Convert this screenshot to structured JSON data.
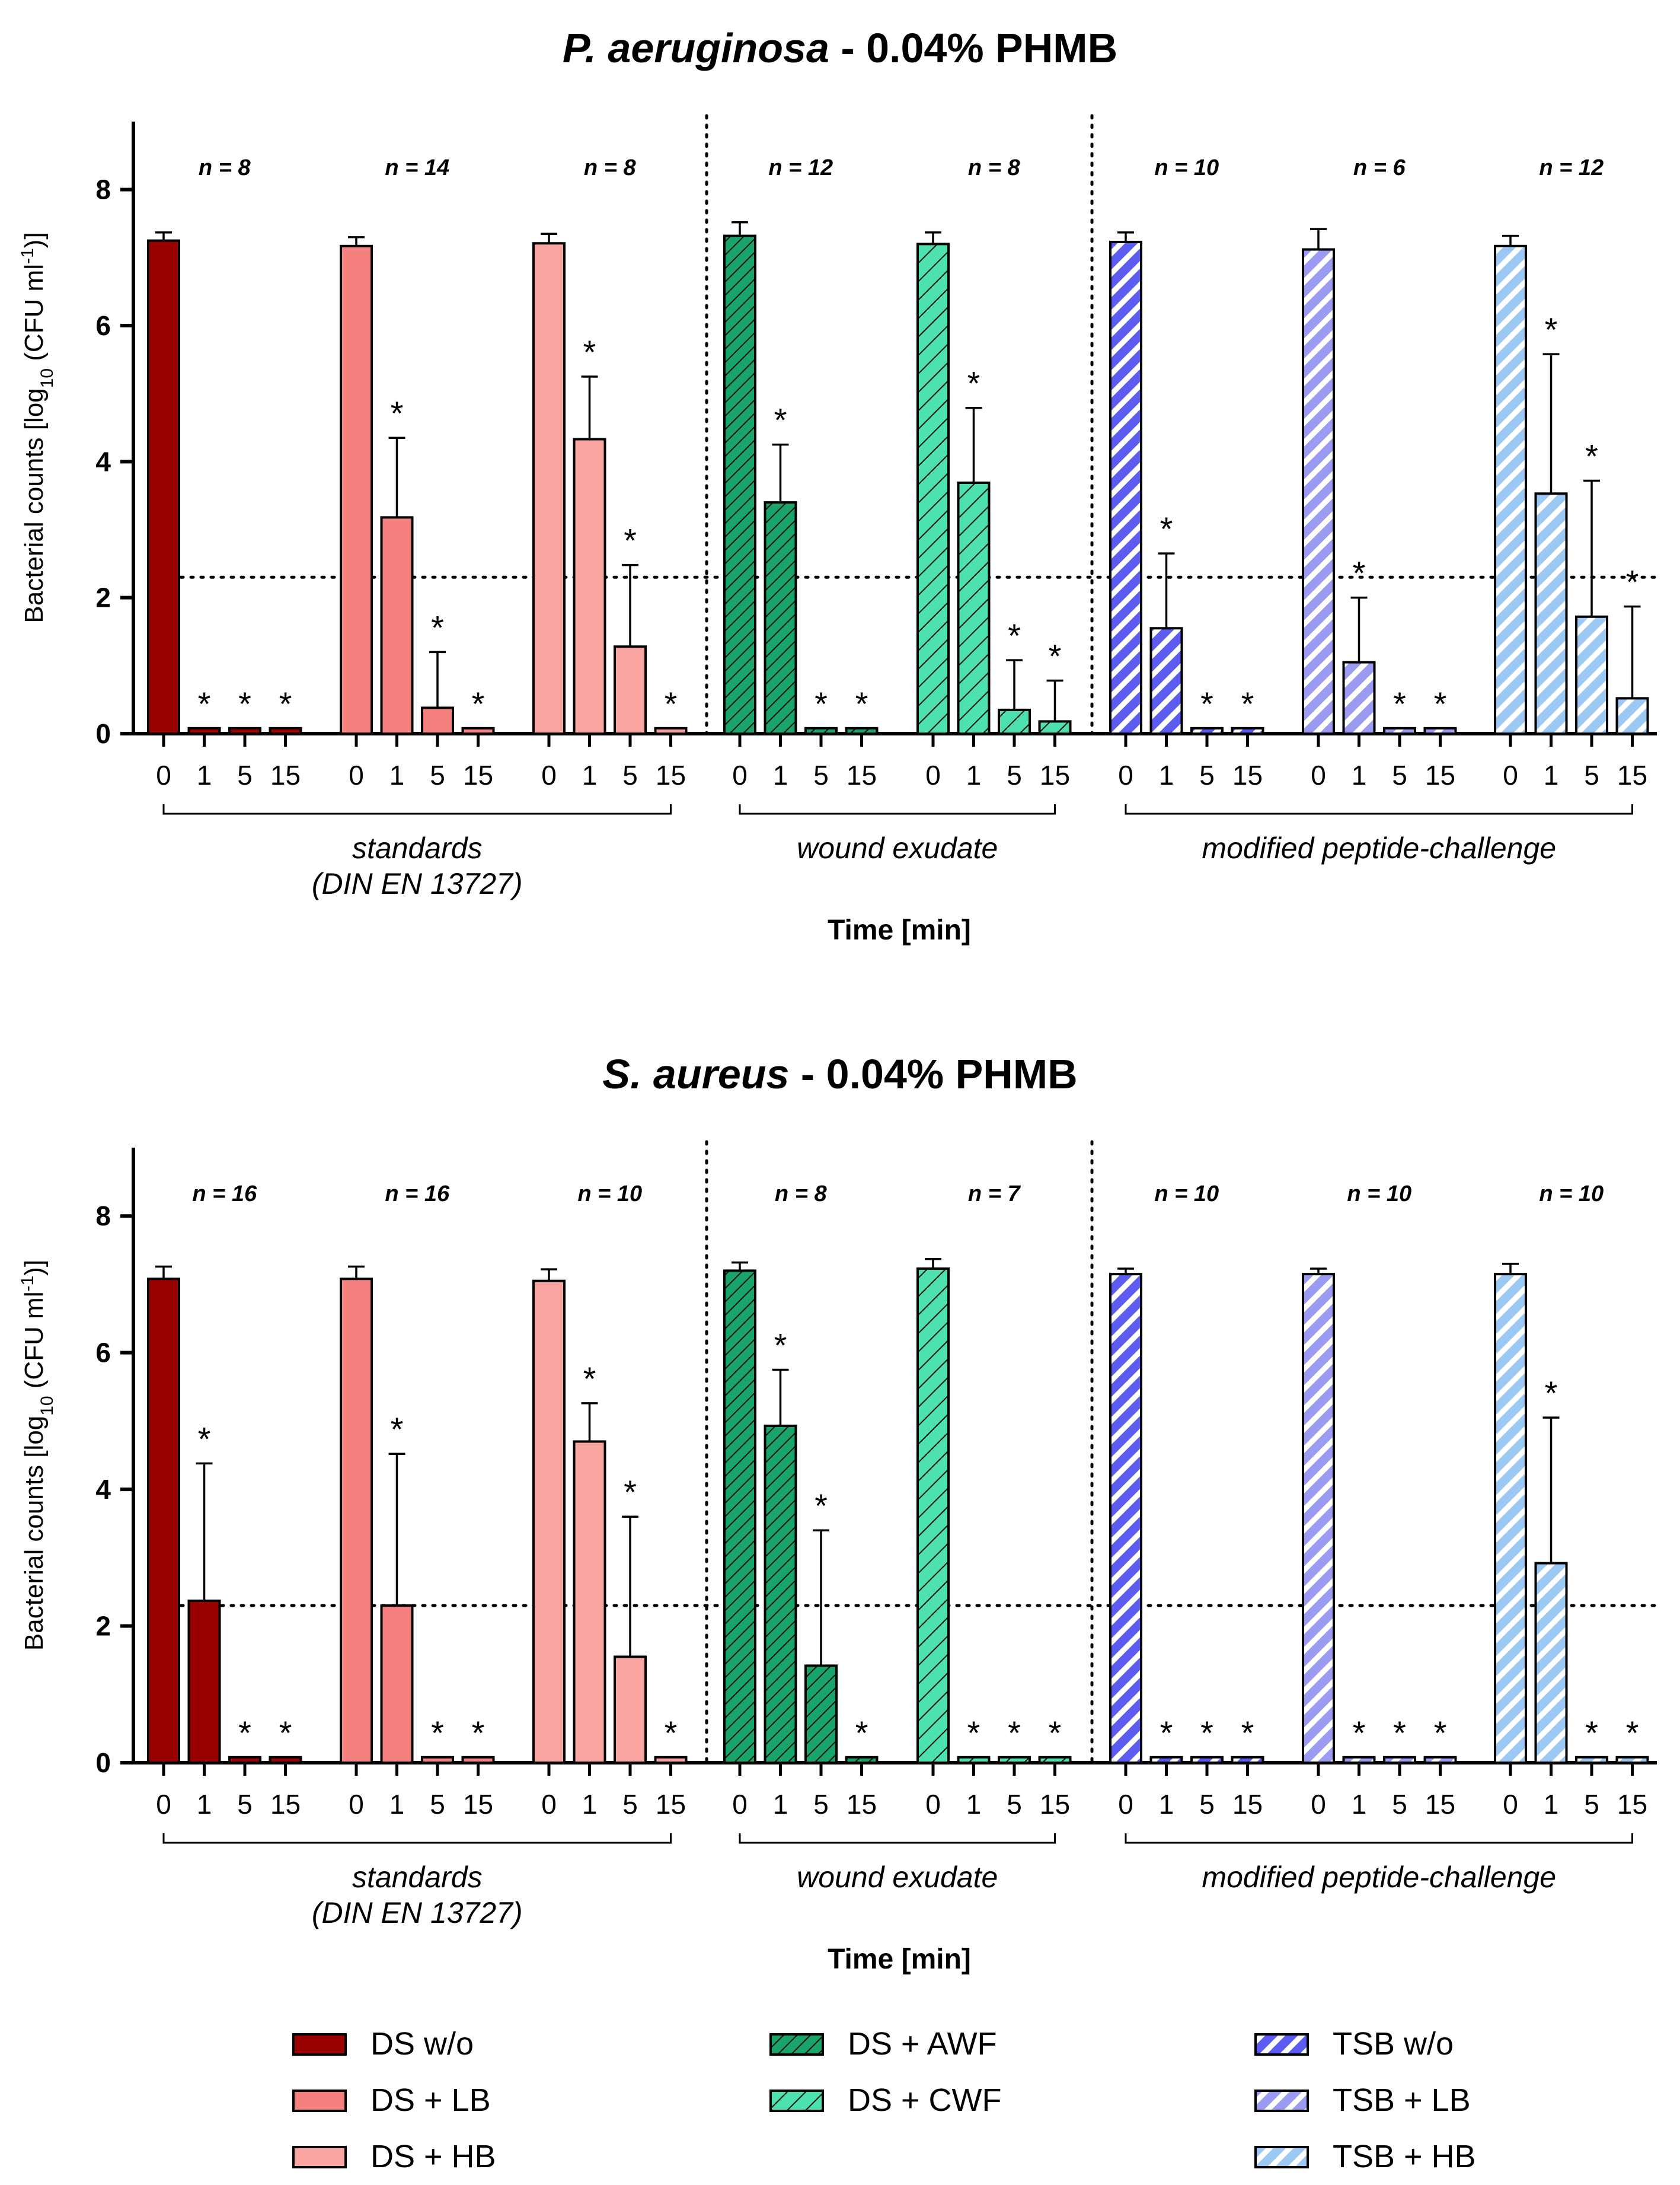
{
  "chart_data": [
    {
      "type": "bar",
      "title_italic": "P. aeruginosa",
      "title_rest": " - 0.04% PHMB",
      "ylabel": "Bacterial counts [log10 (CFU ml-1)]",
      "ylabel_parts": [
        "Bacterial counts [log",
        "10",
        " (CFU ml",
        "-1",
        ")]"
      ],
      "xlabel": "Time [min]",
      "ylim": [
        0,
        9
      ],
      "yticks": [
        0,
        2,
        4,
        6,
        8
      ],
      "detection_limit": 2.3,
      "time_labels": [
        "0",
        "1",
        "5",
        "15"
      ],
      "group_labels": [
        {
          "lines": [
            "standards",
            "(DIN EN 13727)"
          ]
        },
        {
          "lines": [
            "wound exudate"
          ]
        },
        {
          "lines": [
            "modified peptide-challenge"
          ]
        }
      ],
      "series": [
        {
          "name": "DS w/o",
          "n": "n = 8",
          "values": [
            7.25,
            0.08,
            0.08,
            0.08
          ],
          "errors": [
            0.12,
            0,
            0,
            0
          ],
          "sig": [
            false,
            true,
            true,
            true
          ]
        },
        {
          "name": "DS + LB",
          "n": "n = 14",
          "values": [
            7.17,
            3.18,
            0.38,
            0.08
          ],
          "errors": [
            0.13,
            1.17,
            0.82,
            0
          ],
          "sig": [
            false,
            true,
            true,
            true
          ]
        },
        {
          "name": "DS + HB",
          "n": "n = 8",
          "values": [
            7.21,
            4.33,
            1.28,
            0.08
          ],
          "errors": [
            0.14,
            0.92,
            1.2,
            0
          ],
          "sig": [
            false,
            true,
            true,
            true
          ]
        },
        {
          "name": "DS + AWF",
          "n": "n = 12",
          "values": [
            7.32,
            3.4,
            0.08,
            0.08
          ],
          "errors": [
            0.2,
            0.85,
            0,
            0
          ],
          "sig": [
            false,
            true,
            true,
            true
          ]
        },
        {
          "name": "DS + CWF",
          "n": "n = 8",
          "values": [
            7.2,
            3.69,
            0.35,
            0.18
          ],
          "errors": [
            0.17,
            1.1,
            0.73,
            0.6
          ],
          "sig": [
            false,
            true,
            true,
            true
          ]
        },
        {
          "name": "TSB w/o",
          "n": "n = 10",
          "values": [
            7.23,
            1.55,
            0.08,
            0.08
          ],
          "errors": [
            0.14,
            1.1,
            0,
            0
          ],
          "sig": [
            false,
            true,
            true,
            true
          ]
        },
        {
          "name": "TSB + LB",
          "n": "n = 6",
          "values": [
            7.12,
            1.05,
            0.08,
            0.08
          ],
          "errors": [
            0.3,
            0.95,
            0,
            0
          ],
          "sig": [
            false,
            true,
            true,
            true
          ]
        },
        {
          "name": "TSB + HB",
          "n": "n = 12",
          "values": [
            7.17,
            3.53,
            1.72,
            0.52
          ],
          "errors": [
            0.15,
            2.05,
            2.0,
            1.35
          ],
          "sig": [
            false,
            true,
            true,
            true
          ]
        }
      ]
    },
    {
      "type": "bar",
      "title_italic": "S. aureus",
      "title_rest": " - 0.04% PHMB",
      "ylabel": "Bacterial counts [log10 (CFU ml-1)]",
      "ylabel_parts": [
        "Bacterial counts [log",
        "10",
        " (CFU ml",
        "-1",
        ")]"
      ],
      "xlabel": "Time [min]",
      "ylim": [
        0,
        9
      ],
      "yticks": [
        0,
        2,
        4,
        6,
        8
      ],
      "detection_limit": 2.3,
      "time_labels": [
        "0",
        "1",
        "5",
        "15"
      ],
      "group_labels": [
        {
          "lines": [
            "standards",
            "(DIN EN 13727)"
          ]
        },
        {
          "lines": [
            "wound exudate"
          ]
        },
        {
          "lines": [
            "modified peptide-challenge"
          ]
        }
      ],
      "series": [
        {
          "name": "DS w/o",
          "n": "n = 16",
          "values": [
            7.08,
            2.37,
            0.08,
            0.08
          ],
          "errors": [
            0.18,
            2.01,
            0,
            0
          ],
          "sig": [
            false,
            true,
            true,
            true
          ]
        },
        {
          "name": "DS + LB",
          "n": "n = 16",
          "values": [
            7.08,
            2.3,
            0.08,
            0.08
          ],
          "errors": [
            0.18,
            2.22,
            0,
            0
          ],
          "sig": [
            false,
            true,
            true,
            true
          ]
        },
        {
          "name": "DS + HB",
          "n": "n = 10",
          "values": [
            7.05,
            4.7,
            1.55,
            0.08
          ],
          "errors": [
            0.17,
            0.56,
            2.05,
            0
          ],
          "sig": [
            false,
            true,
            true,
            true
          ]
        },
        {
          "name": "DS + AWF",
          "n": "n = 8",
          "values": [
            7.2,
            4.93,
            1.42,
            0.08
          ],
          "errors": [
            0.12,
            0.82,
            1.98,
            0
          ],
          "sig": [
            false,
            true,
            true,
            true
          ]
        },
        {
          "name": "DS + CWF",
          "n": "n = 7",
          "values": [
            7.23,
            0.08,
            0.08,
            0.08
          ],
          "errors": [
            0.14,
            0,
            0,
            0
          ],
          "sig": [
            false,
            true,
            true,
            true
          ]
        },
        {
          "name": "TSB w/o",
          "n": "n = 10",
          "values": [
            7.15,
            0.08,
            0.08,
            0.08
          ],
          "errors": [
            0.08,
            0,
            0,
            0
          ],
          "sig": [
            false,
            true,
            true,
            true
          ]
        },
        {
          "name": "TSB + LB",
          "n": "n = 10",
          "values": [
            7.15,
            0.08,
            0.08,
            0.08
          ],
          "errors": [
            0.08,
            0,
            0,
            0
          ],
          "sig": [
            false,
            true,
            true,
            true
          ]
        },
        {
          "name": "TSB + HB",
          "n": "n = 10",
          "values": [
            7.15,
            2.92,
            0.08,
            0.08
          ],
          "errors": [
            0.15,
            2.13,
            0,
            0
          ],
          "sig": [
            false,
            true,
            true,
            true
          ]
        }
      ]
    }
  ],
  "star_label": "*",
  "legend": [
    {
      "label": "DS w/o",
      "fill": "#990000",
      "pattern": "solid"
    },
    {
      "label": "DS + LB",
      "fill": "#f4817d",
      "pattern": "solid"
    },
    {
      "label": "DS + HB",
      "fill": "#f9a6a3",
      "pattern": "solid"
    },
    {
      "label": "DS + AWF",
      "fill": "#19a46a",
      "pattern": "diag-dense"
    },
    {
      "label": "DS + CWF",
      "fill": "#4de0b0",
      "pattern": "diag-sparse"
    },
    {
      "label": "TSB w/o",
      "fill": "#5c5cf0",
      "pattern": "diag-wide"
    },
    {
      "label": "TSB + LB",
      "fill": "#9b9bf2",
      "pattern": "diag-wide"
    },
    {
      "label": "TSB + HB",
      "fill": "#9cc8f4",
      "pattern": "diag-wide"
    }
  ]
}
